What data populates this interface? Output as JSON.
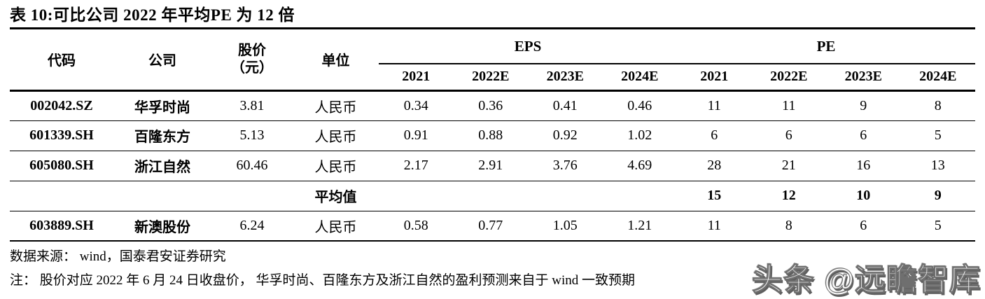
{
  "page": {
    "title": "表 10:可比公司 2022 年平均PE 为 12 倍",
    "source": "数据来源： wind，国泰君安证券研究",
    "note": "注： 股价对应 2022 年 6 月 24 日收盘价， 华孚时尚、百隆东方及浙江自然的盈利预测来自于 wind 一致预期",
    "watermark": "头条 @远瞻智库"
  },
  "table": {
    "col_headers": {
      "code": "代码",
      "company": "公司",
      "price_line1": "股价",
      "price_line2": "（元）",
      "unit": "单位",
      "eps_group": "EPS",
      "pe_group": "PE",
      "years": [
        "2021",
        "2022E",
        "2023E",
        "2024E"
      ]
    },
    "rows": [
      {
        "code": "002042.SZ",
        "company": "华孚时尚",
        "price": "3.81",
        "unit": "人民币",
        "eps": [
          "0.34",
          "0.36",
          "0.41",
          "0.46"
        ],
        "pe": [
          "11",
          "11",
          "9",
          "8"
        ],
        "is_average": false
      },
      {
        "code": "601339.SH",
        "company": "百隆东方",
        "price": "5.13",
        "unit": "人民币",
        "eps": [
          "0.91",
          "0.88",
          "0.92",
          "1.02"
        ],
        "pe": [
          "6",
          "6",
          "6",
          "5"
        ],
        "is_average": false
      },
      {
        "code": "605080.SH",
        "company": "浙江自然",
        "price": "60.46",
        "unit": "人民币",
        "eps": [
          "2.17",
          "2.91",
          "3.76",
          "4.69"
        ],
        "pe": [
          "28",
          "21",
          "16",
          "13"
        ],
        "is_average": false
      },
      {
        "code": "",
        "company": "",
        "price": "",
        "unit": "平均值",
        "eps": [
          "",
          "",
          "",
          ""
        ],
        "pe": [
          "15",
          "12",
          "10",
          "9"
        ],
        "is_average": true
      },
      {
        "code": "603889.SH",
        "company": "新澳股份",
        "price": "6.24",
        "unit": "人民币",
        "eps": [
          "0.58",
          "0.77",
          "1.05",
          "1.21"
        ],
        "pe": [
          "11",
          "8",
          "6",
          "5"
        ],
        "is_average": false
      }
    ]
  },
  "colors": {
    "text": "#000000",
    "background": "#ffffff",
    "rule": "#000000",
    "watermark_fill": "#fafafa",
    "watermark_shadow": "#5f5f5f"
  }
}
